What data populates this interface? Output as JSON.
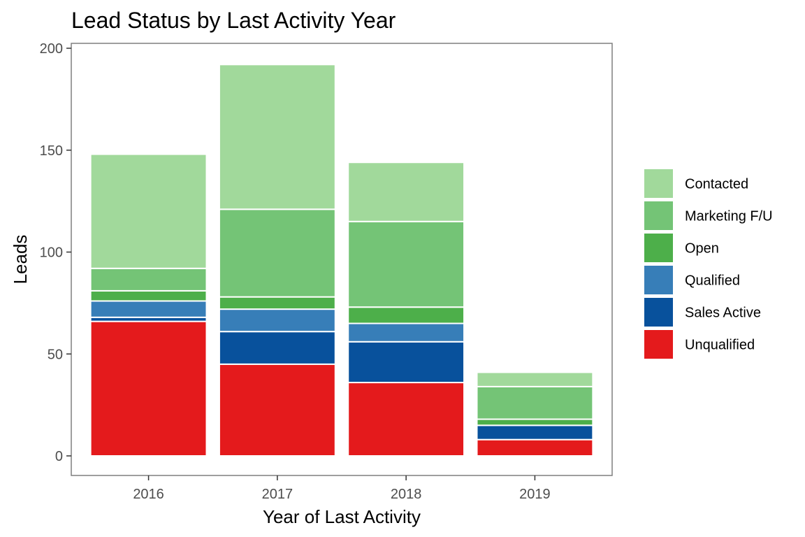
{
  "chart_data": {
    "type": "bar",
    "stacked": true,
    "title": "Lead Status by Last Activity Year",
    "xlabel": "Year of Last Activity",
    "ylabel": "Leads",
    "categories": [
      "2016",
      "2017",
      "2018",
      "2019"
    ],
    "ylim": [
      0,
      200
    ],
    "yticks": [
      0,
      50,
      100,
      150,
      200
    ],
    "grid": false,
    "legend_position": "right",
    "series": [
      {
        "name": "Unqualified",
        "color": "#E41A1C",
        "values": [
          66,
          45,
          36,
          8
        ]
      },
      {
        "name": "Sales Active",
        "color": "#08519C",
        "values": [
          2,
          16,
          20,
          7
        ]
      },
      {
        "name": "Qualified",
        "color": "#377EB8",
        "values": [
          8,
          11,
          9,
          0
        ]
      },
      {
        "name": "Open",
        "color": "#4DAF4A",
        "values": [
          5,
          6,
          8,
          3
        ]
      },
      {
        "name": "Marketing F/U",
        "color": "#74C476",
        "values": [
          11,
          43,
          42,
          16
        ]
      },
      {
        "name": "Contacted",
        "color": "#A1D99B",
        "values": [
          56,
          71,
          29,
          7
        ]
      }
    ],
    "legend_order": [
      "Contacted",
      "Marketing F/U",
      "Open",
      "Qualified",
      "Sales Active",
      "Unqualified"
    ]
  }
}
